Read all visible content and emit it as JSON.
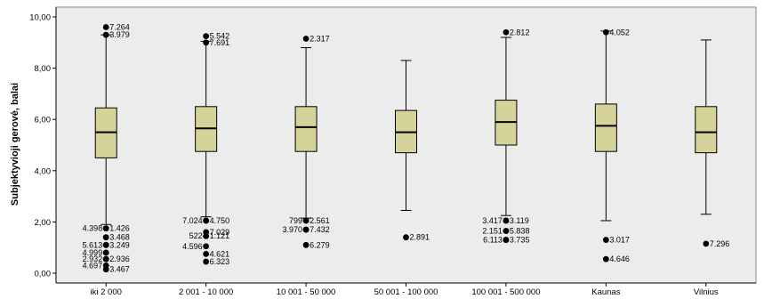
{
  "chart_data": {
    "type": "boxplot",
    "title": "",
    "xlabel": "",
    "ylabel": "Subjektyvioji gerovė, balai",
    "ylim": [
      0,
      10
    ],
    "yticks": [
      0,
      2,
      4,
      6,
      8,
      10
    ],
    "ytick_labels": [
      "0,00",
      "2,00",
      "4,00",
      "6,00",
      "8,00",
      "10,00"
    ],
    "grid": false,
    "colors": {
      "plot_bg": "#ececec",
      "box_fill": "#d6d39a",
      "outline": "#000000"
    },
    "categories": [
      "iki 2 000",
      "2 001 - 10 000",
      "10 001 - 50 000",
      "50 001 - 100 000",
      "100 001 - 500 000",
      "Kaunas",
      "Vilnius"
    ],
    "boxes": [
      {
        "whisker_low": 1.9,
        "q1": 4.5,
        "median": 5.5,
        "q3": 6.45,
        "whisker_high": 9.3
      },
      {
        "whisker_low": 2.2,
        "q1": 4.75,
        "median": 5.65,
        "q3": 6.5,
        "whisker_high": 9.05
      },
      {
        "whisker_low": 2.15,
        "q1": 4.75,
        "median": 5.7,
        "q3": 6.5,
        "whisker_high": 8.8
      },
      {
        "whisker_low": 2.45,
        "q1": 4.7,
        "median": 5.5,
        "q3": 6.35,
        "whisker_high": 8.3
      },
      {
        "whisker_low": 2.25,
        "q1": 5.0,
        "median": 5.9,
        "q3": 6.75,
        "whisker_high": 9.2
      },
      {
        "whisker_low": 2.05,
        "q1": 4.75,
        "median": 5.75,
        "q3": 6.6,
        "whisker_high": 9.45
      },
      {
        "whisker_low": 2.3,
        "q1": 4.7,
        "median": 5.5,
        "q3": 6.5,
        "whisker_high": 9.1
      }
    ],
    "outliers": [
      {
        "cat": 0,
        "y": 9.6,
        "label": "7.264",
        "side": "right"
      },
      {
        "cat": 0,
        "y": 9.3,
        "label": "3.979",
        "side": "right"
      },
      {
        "cat": 0,
        "y": 1.75,
        "label": "4.398",
        "side": "left"
      },
      {
        "cat": 0,
        "y": 1.75,
        "label": "1.426",
        "side": "right"
      },
      {
        "cat": 0,
        "y": 1.4,
        "label": "3.468",
        "side": "right"
      },
      {
        "cat": 0,
        "y": 1.1,
        "label": "5.613",
        "side": "left"
      },
      {
        "cat": 0,
        "y": 1.1,
        "label": "3.249",
        "side": "right"
      },
      {
        "cat": 0,
        "y": 0.8,
        "label": "4.999",
        "side": "left"
      },
      {
        "cat": 0,
        "y": 0.55,
        "label": "2.932",
        "side": "left"
      },
      {
        "cat": 0,
        "y": 0.55,
        "label": "2.936",
        "side": "right"
      },
      {
        "cat": 0,
        "y": 0.3,
        "label": "4.697",
        "side": "left"
      },
      {
        "cat": 0,
        "y": 0.15,
        "label": "3.467",
        "side": "right"
      },
      {
        "cat": 1,
        "y": 9.25,
        "label": "5.542",
        "side": "right"
      },
      {
        "cat": 1,
        "y": 9.0,
        "label": "7.691",
        "side": "right"
      },
      {
        "cat": 1,
        "y": 2.05,
        "label": "7.024",
        "side": "left"
      },
      {
        "cat": 1,
        "y": 2.05,
        "label": "4.750",
        "side": "right"
      },
      {
        "cat": 1,
        "y": 1.6,
        "label": "7.029",
        "side": "right"
      },
      {
        "cat": 1,
        "y": 1.45,
        "label": "522",
        "side": "left"
      },
      {
        "cat": 1,
        "y": 1.45,
        "label": "1.121",
        "side": "right"
      },
      {
        "cat": 1,
        "y": 1.05,
        "label": "4.596",
        "side": "left"
      },
      {
        "cat": 1,
        "y": 0.75,
        "label": "4.621",
        "side": "right"
      },
      {
        "cat": 1,
        "y": 0.45,
        "label": "6.323",
        "side": "right"
      },
      {
        "cat": 2,
        "y": 9.15,
        "label": "2.317",
        "side": "right"
      },
      {
        "cat": 2,
        "y": 2.05,
        "label": "799",
        "side": "left"
      },
      {
        "cat": 2,
        "y": 2.05,
        "label": "2.561",
        "side": "right"
      },
      {
        "cat": 2,
        "y": 1.7,
        "label": "3.970",
        "side": "left"
      },
      {
        "cat": 2,
        "y": 1.7,
        "label": "7.432",
        "side": "right"
      },
      {
        "cat": 2,
        "y": 1.1,
        "label": "6.279",
        "side": "right"
      },
      {
        "cat": 3,
        "y": 1.4,
        "label": "2.891",
        "side": "right"
      },
      {
        "cat": 4,
        "y": 9.4,
        "label": "2.812",
        "side": "right"
      },
      {
        "cat": 4,
        "y": 2.05,
        "label": "3.417",
        "side": "left"
      },
      {
        "cat": 4,
        "y": 2.05,
        "label": "3.119",
        "side": "right"
      },
      {
        "cat": 4,
        "y": 1.65,
        "label": "2.151",
        "side": "left"
      },
      {
        "cat": 4,
        "y": 1.65,
        "label": "5.838",
        "side": "right"
      },
      {
        "cat": 4,
        "y": 1.3,
        "label": "6.113",
        "side": "left"
      },
      {
        "cat": 4,
        "y": 1.3,
        "label": "3.735",
        "side": "right"
      },
      {
        "cat": 5,
        "y": 9.4,
        "label": "4.052",
        "side": "right"
      },
      {
        "cat": 5,
        "y": 1.3,
        "label": "3.017",
        "side": "right"
      },
      {
        "cat": 5,
        "y": 0.55,
        "label": "4.646",
        "side": "right"
      },
      {
        "cat": 6,
        "y": 1.15,
        "label": "7.296",
        "side": "right"
      }
    ]
  }
}
